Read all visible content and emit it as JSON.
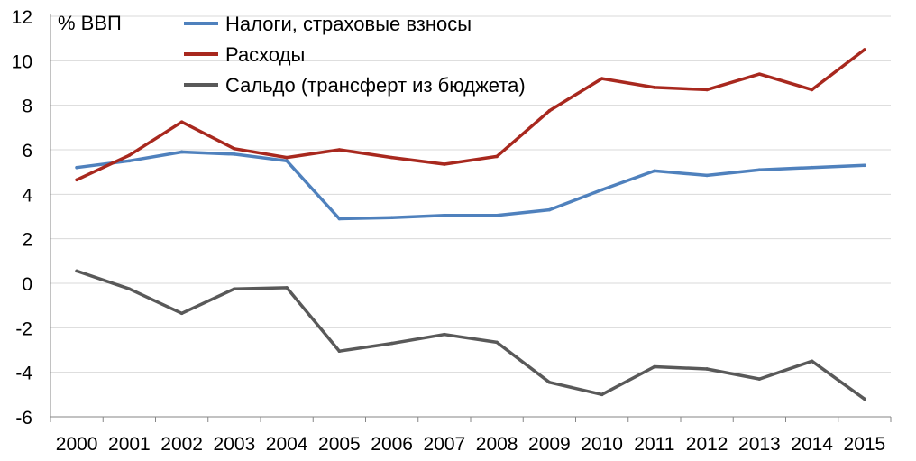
{
  "chart_data": {
    "type": "line",
    "unit_label": "% ВВП",
    "x": [
      "2000",
      "2001",
      "2002",
      "2003",
      "2004",
      "2005",
      "2006",
      "2007",
      "2008",
      "2009",
      "2010",
      "2011",
      "2012",
      "2013",
      "2014",
      "2015"
    ],
    "ylim": [
      -6,
      12
    ],
    "yticks": [
      "12",
      "10",
      "8",
      "6",
      "4",
      "2",
      "0",
      "-2",
      "-4",
      "-6"
    ],
    "grid": true,
    "legend_position": "top-left",
    "series": [
      {
        "name": "Налоги, страховые взносы",
        "color": "#4f81bd",
        "values": [
          5.2,
          5.5,
          5.9,
          5.8,
          5.5,
          2.9,
          2.95,
          3.05,
          3.05,
          3.3,
          4.2,
          5.05,
          4.85,
          5.1,
          5.2,
          5.3
        ]
      },
      {
        "name": "Расходы",
        "color": "#a8281e",
        "values": [
          4.65,
          5.75,
          7.25,
          6.05,
          5.65,
          6.0,
          5.65,
          5.35,
          5.7,
          7.75,
          9.2,
          8.8,
          8.7,
          9.4,
          8.7,
          10.5
        ]
      },
      {
        "name": "Сальдо (трансферт из бюджета)",
        "color": "#595959",
        "values": [
          0.55,
          -0.25,
          -1.35,
          -0.25,
          -0.2,
          -3.05,
          -2.7,
          -2.3,
          -2.65,
          -4.45,
          -5.0,
          -3.75,
          -3.85,
          -4.3,
          -3.5,
          -5.2
        ]
      }
    ]
  }
}
